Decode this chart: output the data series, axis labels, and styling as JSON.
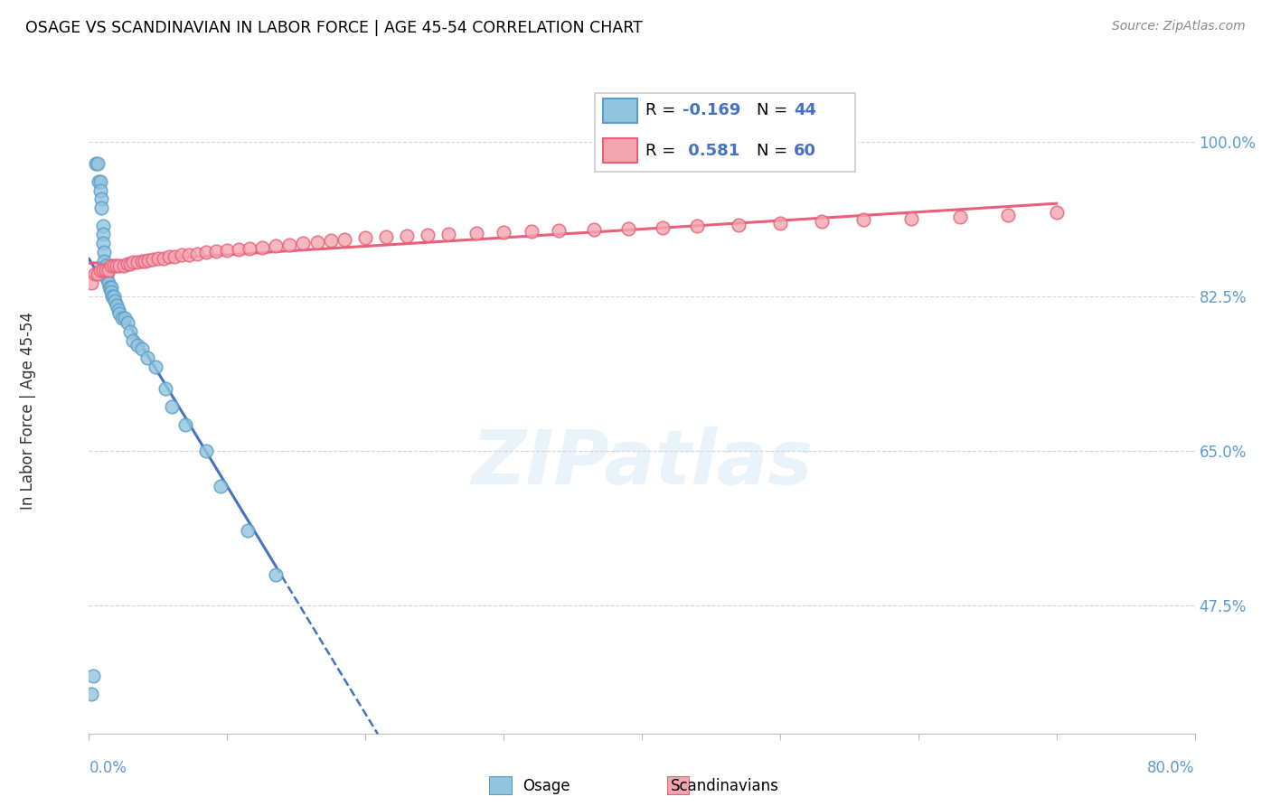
{
  "title": "OSAGE VS SCANDINAVIAN IN LABOR FORCE | AGE 45-54 CORRELATION CHART",
  "source": "Source: ZipAtlas.com",
  "ylabel": "In Labor Force | Age 45-54",
  "ytick_labels": [
    "100.0%",
    "82.5%",
    "65.0%",
    "47.5%"
  ],
  "ytick_values": [
    1.0,
    0.825,
    0.65,
    0.475
  ],
  "xlim": [
    0.0,
    0.8
  ],
  "ylim": [
    0.33,
    1.06
  ],
  "osage_color": "#92C5DE",
  "osage_edge_color": "#5B9EC9",
  "scand_color": "#F4A6B0",
  "scand_edge_color": "#E8607A",
  "trendline_osage_color": "#4472C4",
  "trendline_scand_color": "#E8607A",
  "watermark": "ZIPatlas",
  "osage_points_x": [
    0.002,
    0.003,
    0.005,
    0.006,
    0.007,
    0.008,
    0.008,
    0.009,
    0.009,
    0.01,
    0.01,
    0.01,
    0.011,
    0.011,
    0.012,
    0.012,
    0.013,
    0.013,
    0.014,
    0.015,
    0.016,
    0.016,
    0.017,
    0.018,
    0.019,
    0.02,
    0.021,
    0.022,
    0.024,
    0.026,
    0.028,
    0.03,
    0.032,
    0.035,
    0.038,
    0.042,
    0.048,
    0.055,
    0.06,
    0.07,
    0.085,
    0.095,
    0.115,
    0.135
  ],
  "osage_points_y": [
    0.375,
    0.395,
    0.975,
    0.975,
    0.955,
    0.955,
    0.945,
    0.935,
    0.925,
    0.905,
    0.895,
    0.885,
    0.875,
    0.865,
    0.86,
    0.855,
    0.85,
    0.845,
    0.84,
    0.835,
    0.835,
    0.83,
    0.825,
    0.825,
    0.82,
    0.815,
    0.81,
    0.805,
    0.8,
    0.8,
    0.795,
    0.785,
    0.775,
    0.77,
    0.765,
    0.755,
    0.745,
    0.72,
    0.7,
    0.68,
    0.65,
    0.61,
    0.56,
    0.51
  ],
  "scand_points_x": [
    0.002,
    0.004,
    0.006,
    0.008,
    0.01,
    0.012,
    0.014,
    0.016,
    0.018,
    0.02,
    0.022,
    0.025,
    0.028,
    0.03,
    0.032,
    0.035,
    0.038,
    0.04,
    0.043,
    0.046,
    0.05,
    0.054,
    0.058,
    0.062,
    0.067,
    0.072,
    0.078,
    0.085,
    0.092,
    0.1,
    0.108,
    0.116,
    0.125,
    0.135,
    0.145,
    0.155,
    0.165,
    0.175,
    0.185,
    0.2,
    0.215,
    0.23,
    0.245,
    0.26,
    0.28,
    0.3,
    0.32,
    0.34,
    0.365,
    0.39,
    0.415,
    0.44,
    0.47,
    0.5,
    0.53,
    0.56,
    0.595,
    0.63,
    0.665,
    0.7
  ],
  "scand_points_y": [
    0.84,
    0.85,
    0.85,
    0.855,
    0.855,
    0.855,
    0.855,
    0.86,
    0.86,
    0.86,
    0.86,
    0.86,
    0.862,
    0.862,
    0.864,
    0.864,
    0.865,
    0.865,
    0.866,
    0.867,
    0.868,
    0.868,
    0.87,
    0.87,
    0.872,
    0.872,
    0.873,
    0.875,
    0.876,
    0.877,
    0.878,
    0.879,
    0.88,
    0.882,
    0.883,
    0.885,
    0.886,
    0.888,
    0.889,
    0.891,
    0.892,
    0.893,
    0.894,
    0.895,
    0.896,
    0.897,
    0.899,
    0.9,
    0.901,
    0.902,
    0.903,
    0.905,
    0.906,
    0.908,
    0.91,
    0.912,
    0.913,
    0.915,
    0.917,
    0.92
  ]
}
